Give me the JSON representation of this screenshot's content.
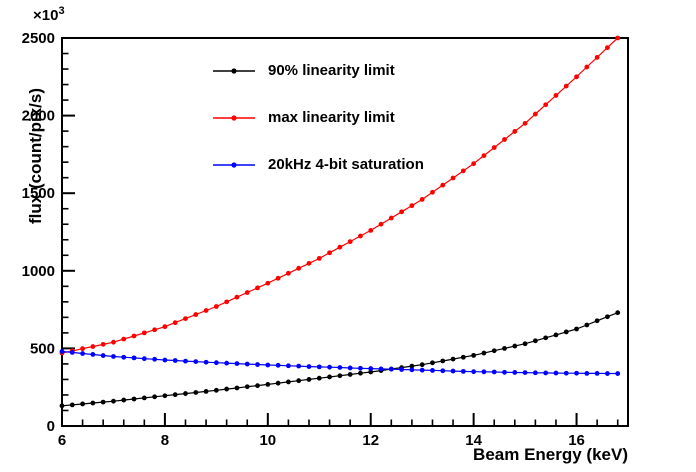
{
  "figure": {
    "y_exponent_base": "×10",
    "y_exponent_power": "3"
  },
  "chart_data": {
    "type": "line",
    "title": "",
    "xlabel": "Beam Energy (keV)",
    "ylabel": "flux (count/pix/s)",
    "y_unit_multiplier": "×10³",
    "xlim": [
      6,
      17
    ],
    "ylim": [
      0,
      2500
    ],
    "x_ticks": [
      6,
      8,
      10,
      12,
      14,
      16
    ],
    "y_ticks": [
      0,
      500,
      1000,
      1500,
      2000,
      2500
    ],
    "x_minor_step": 0.4,
    "y_minor_step": 100,
    "grid": false,
    "legend_position": "top-left-inside",
    "x": [
      6.0,
      6.2,
      6.4,
      6.6,
      6.8,
      7.0,
      7.2,
      7.4,
      7.6,
      7.8,
      8.0,
      8.2,
      8.4,
      8.6,
      8.8,
      9.0,
      9.2,
      9.4,
      9.6,
      9.8,
      10.0,
      10.2,
      10.4,
      10.6,
      10.8,
      11.0,
      11.2,
      11.4,
      11.6,
      11.8,
      12.0,
      12.2,
      12.4,
      12.6,
      12.8,
      13.0,
      13.2,
      13.4,
      13.6,
      13.8,
      14.0,
      14.2,
      14.4,
      14.6,
      14.8,
      15.0,
      15.2,
      15.4,
      15.6,
      15.8,
      16.0,
      16.2,
      16.4,
      16.6,
      16.8
    ],
    "series": [
      {
        "name": "90% linearity limit",
        "color": "#000000",
        "marker": "circle",
        "values": [
          130,
          136,
          142,
          148,
          154,
          160,
          167,
          174,
          181,
          188,
          195,
          202,
          209,
          216,
          223,
          230,
          238,
          245,
          253,
          260,
          268,
          276,
          284,
          292,
          300,
          308,
          316,
          324,
          332,
          340,
          348,
          357,
          367,
          376,
          386,
          395,
          407,
          419,
          431,
          443,
          455,
          470,
          485,
          500,
          515,
          530,
          549,
          568,
          587,
          606,
          625,
          651,
          678,
          704,
          730
        ]
      },
      {
        "name": "max linearity limit",
        "color": "#ff0000",
        "marker": "circle",
        "values": [
          470,
          484,
          498,
          512,
          526,
          540,
          560,
          580,
          600,
          620,
          640,
          666,
          692,
          718,
          744,
          770,
          800,
          830,
          860,
          890,
          920,
          952,
          984,
          1016,
          1048,
          1080,
          1116,
          1152,
          1188,
          1224,
          1260,
          1300,
          1340,
          1380,
          1420,
          1460,
          1506,
          1552,
          1598,
          1644,
          1690,
          1742,
          1794,
          1846,
          1898,
          1950,
          2010,
          2070,
          2130,
          2190,
          2250,
          2313,
          2375,
          2438,
          2500
        ]
      },
      {
        "name": "20kHz 4-bit saturation",
        "color": "#0000ff",
        "marker": "circle",
        "values": [
          480,
          474,
          467,
          461,
          454,
          448,
          443,
          439,
          434,
          430,
          425,
          422,
          418,
          415,
          411,
          408,
          405,
          402,
          399,
          396,
          393,
          391,
          388,
          386,
          383,
          381,
          379,
          377,
          374,
          372,
          370,
          368,
          366,
          364,
          362,
          360,
          358,
          356,
          354,
          352,
          350,
          349,
          348,
          346,
          345,
          344,
          343,
          342,
          341,
          340,
          340,
          339,
          339,
          338,
          338
        ]
      }
    ]
  }
}
